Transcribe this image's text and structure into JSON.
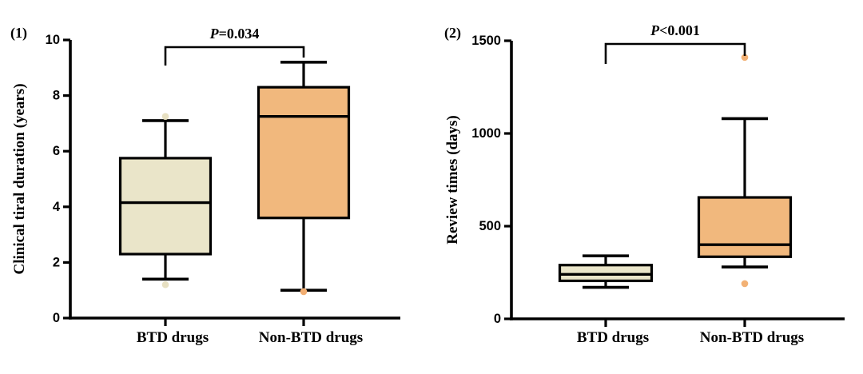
{
  "figure": {
    "background": "#ffffff",
    "stroke_color": "#000000",
    "panels": [
      "(1)",
      "(2)"
    ]
  },
  "chart_data": [
    {
      "type": "box",
      "panel_label": "(1)",
      "ylabel": "Clinical tiral duration (years)",
      "ylim": [
        0,
        10
      ],
      "yticks": [
        0,
        2,
        4,
        6,
        8,
        10
      ],
      "grid": false,
      "legend": "none",
      "categories": [
        "BTD drugs",
        "Non-BTD drugs"
      ],
      "annotation": {
        "prefix": "P",
        "rest": "=0.034",
        "text": "P=0.034"
      },
      "series": [
        {
          "name": "BTD drugs",
          "min": 1.4,
          "q1": 2.3,
          "median": 4.15,
          "q3": 5.75,
          "max": 7.1,
          "outliers": [
            7.25,
            1.2
          ],
          "fill": "#EAE5C9",
          "point_color": "#E7E0C2"
        },
        {
          "name": "Non-BTD drugs",
          "min": 1.0,
          "q1": 3.6,
          "median": 7.25,
          "q3": 8.3,
          "max": 9.2,
          "outliers": [
            0.95
          ],
          "fill": "#F1B87D",
          "point_color": "#F2AE72"
        }
      ]
    },
    {
      "type": "box",
      "panel_label": "(2)",
      "ylabel": "Review times (days)",
      "ylim": [
        0,
        1500
      ],
      "yticks": [
        0,
        500,
        1000,
        1500
      ],
      "grid": false,
      "legend": "none",
      "categories": [
        "BTD drugs",
        "Non-BTD drugs"
      ],
      "annotation": {
        "prefix": "P",
        "rest": "<0.001",
        "text": "P<0.001"
      },
      "series": [
        {
          "name": "BTD drugs",
          "min": 170,
          "q1": 205,
          "median": 240,
          "q3": 290,
          "max": 340,
          "outliers": [],
          "fill": "#EAE5C9",
          "point_color": "#E7E0C2"
        },
        {
          "name": "Non-BTD drugs",
          "min": 280,
          "q1": 335,
          "median": 400,
          "q3": 655,
          "max": 1080,
          "outliers": [
            1410,
            190
          ],
          "fill": "#F1B87D",
          "point_color": "#F2B175"
        }
      ]
    }
  ]
}
